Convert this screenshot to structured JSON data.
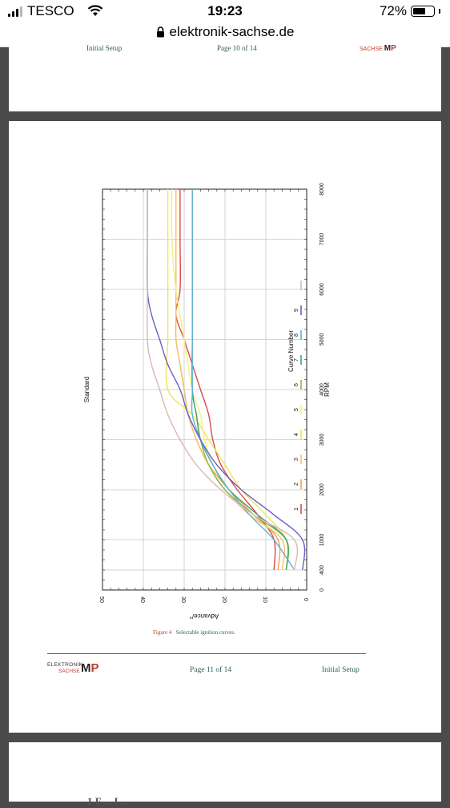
{
  "status_bar": {
    "carrier": "TESCO",
    "time": "19:23",
    "battery": "72%",
    "battery_level": 0.72,
    "url": "elektronik-sachse.de"
  },
  "prev_page_footer": {
    "left": "Initial Setup",
    "center": "Page 10 of 14",
    "brand": "SACHSE"
  },
  "figure": {
    "caption_number": "Figure 4",
    "caption_text": "Selectable ignition curves."
  },
  "chart_data": {
    "type": "line",
    "title": "Standard",
    "xlabel": "RPM",
    "ylabel": "Advance/°",
    "xlim": [
      0,
      8000
    ],
    "ylim": [
      0,
      50
    ],
    "xticks": [
      0,
      400,
      1000,
      2000,
      3000,
      4000,
      5000,
      6000,
      7000,
      8000
    ],
    "yticks": [
      0,
      10,
      20,
      30,
      40,
      50
    ],
    "grid": true,
    "legend_title": "Curve Number",
    "legend_placement": "right",
    "series": [
      {
        "name": "1",
        "color": "#d9484d",
        "x": [
          400,
          1000,
          1500,
          2000,
          2500,
          3000,
          3500,
          4000,
          4500,
          5000,
          5500,
          6000,
          7000,
          8000
        ],
        "y": [
          8,
          8,
          12,
          17,
          21,
          23,
          24,
          26,
          28,
          30,
          32,
          31,
          31,
          31
        ]
      },
      {
        "name": "2",
        "color": "#f2a24e",
        "x": [
          400,
          1000,
          1500,
          2000,
          2500,
          3000,
          3500,
          4000,
          4500,
          5000,
          5500,
          6000,
          7000,
          8000
        ],
        "y": [
          7,
          7,
          13,
          19,
          24,
          27,
          29,
          30,
          31,
          32,
          32,
          32,
          32,
          32
        ]
      },
      {
        "name": "3",
        "color": "#f5c56a",
        "x": [
          400,
          1000,
          1500,
          2000,
          2500,
          3000,
          3500,
          4000,
          4500,
          5000,
          5500,
          6000,
          7000,
          8000
        ],
        "y": [
          6,
          6,
          14,
          20,
          24,
          27,
          29,
          30,
          31,
          32,
          32,
          32,
          32,
          32
        ]
      },
      {
        "name": "4",
        "color": "#f0e64c",
        "x": [
          400,
          1000,
          1500,
          2000,
          2500,
          3000,
          3500,
          4000,
          5000,
          6000,
          7000,
          8000
        ],
        "y": [
          5,
          5,
          10,
          16,
          20,
          24,
          28,
          34,
          34,
          34,
          34,
          34
        ]
      },
      {
        "name": "5",
        "color": "#f5f07a",
        "x": [
          400,
          1000,
          1500,
          2000,
          2500,
          3000,
          3500,
          4000,
          5000,
          6000,
          7000,
          8000
        ],
        "y": [
          5,
          5,
          12,
          19,
          23,
          25,
          26,
          28,
          30,
          32,
          33,
          33
        ]
      },
      {
        "name": "6",
        "color": "#8fb84a",
        "x": [
          400,
          1000,
          1500,
          2000,
          2500,
          3000,
          3500,
          4000,
          5000,
          6000,
          7000,
          8000
        ],
        "y": [
          5,
          5,
          13,
          20,
          24,
          26,
          27,
          28,
          28,
          28,
          28,
          28
        ]
      },
      {
        "name": "7",
        "color": "#3fa36a",
        "x": [
          400,
          1000,
          1500,
          2000,
          2500,
          3000,
          3500,
          4000,
          5000,
          6000,
          7000,
          8000
        ],
        "y": [
          5,
          5,
          12,
          19,
          23,
          26,
          27,
          28,
          28,
          28,
          28,
          28
        ]
      },
      {
        "name": "8",
        "color": "#5fb4d6",
        "x": [
          400,
          1000,
          1500,
          2000,
          2500,
          3000,
          3500,
          4000,
          5000,
          6000,
          7000,
          8000
        ],
        "y": [
          3,
          8,
          14,
          19,
          23,
          26,
          28,
          28,
          28,
          28,
          28,
          28
        ]
      },
      {
        "name": "9",
        "color": "#6a5fc4",
        "x": [
          400,
          1000,
          1500,
          2000,
          2500,
          3000,
          3500,
          4000,
          4500,
          5000,
          5500,
          6000,
          7000,
          8000
        ],
        "y": [
          1,
          1,
          8,
          16,
          22,
          26,
          29,
          31,
          34,
          36,
          38,
          39,
          39,
          39
        ]
      },
      {
        "name": "",
        "color": "#d8b8b8",
        "x": [
          400,
          1000,
          1500,
          2000,
          2500,
          3000,
          3500,
          4000,
          4500,
          5000,
          6000,
          7000,
          8000
        ],
        "y": [
          3,
          3,
          13,
          21,
          27,
          31,
          34,
          36,
          38,
          39,
          39,
          39,
          39
        ]
      }
    ]
  },
  "footer": {
    "brand_line1": "ELEKTRONIK",
    "brand_line2": "SACHSE",
    "logo_m": "M",
    "logo_rest": "P",
    "page": "Page 11 of 14",
    "section": "Initial Setup"
  },
  "next_page": {
    "heading_fragment": "1 F ... I ..."
  }
}
